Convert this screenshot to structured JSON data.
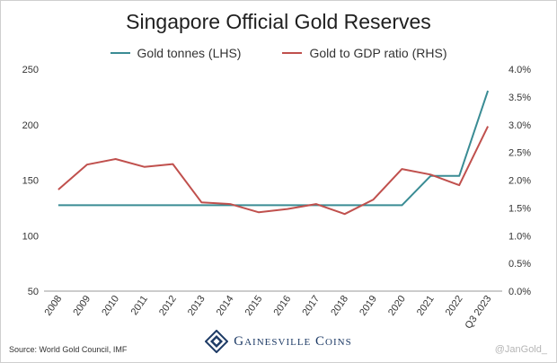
{
  "chart_data": {
    "type": "line",
    "title": "Singapore Official Gold Reserves",
    "categories": [
      "2008",
      "2009",
      "2010",
      "2011",
      "2012",
      "2013",
      "2014",
      "2015",
      "2016",
      "2017",
      "2018",
      "2019",
      "2020",
      "2021",
      "2022",
      "Q3 2023"
    ],
    "series": [
      {
        "name": "Gold tonnes (LHS)",
        "axis": "left",
        "color": "#3a8c94",
        "values": [
          127.4,
          127.4,
          127.4,
          127.4,
          127.4,
          127.4,
          127.4,
          127.4,
          127.4,
          127.4,
          127.4,
          127.4,
          127.4,
          153.8,
          153.8,
          230.6
        ]
      },
      {
        "name": "Gold to GDP ratio (RHS)",
        "axis": "right",
        "color": "#c0504d",
        "values": [
          1.83,
          2.28,
          2.38,
          2.24,
          2.29,
          1.6,
          1.57,
          1.42,
          1.48,
          1.57,
          1.39,
          1.65,
          2.2,
          2.1,
          1.91,
          2.97
        ]
      }
    ],
    "y_left": {
      "lim": [
        50,
        250
      ],
      "ticks": [
        "50",
        "100",
        "150",
        "200",
        "250"
      ]
    },
    "y_right": {
      "lim": [
        0,
        4
      ],
      "ticks": [
        "0.0%",
        "0.5%",
        "1.0%",
        "1.5%",
        "2.0%",
        "2.5%",
        "3.0%",
        "3.5%",
        "4.0%"
      ]
    },
    "grid": false,
    "legend": "top-center"
  },
  "footer": {
    "source": "Source: World Gold Council, IMF",
    "brand": "Gainesville Coins",
    "watermark": "@JanGold_"
  }
}
